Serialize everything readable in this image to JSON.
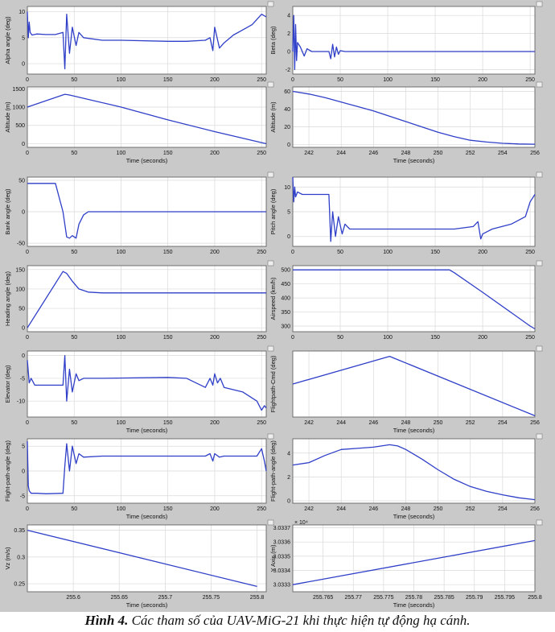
{
  "figure_caption": {
    "label": "Hình 4.",
    "text": "Các tham số của UAV-MiG-21 khi thực hiện tự động hạ cánh."
  },
  "colors": {
    "line": "#2f3fc8",
    "grid": "#d9d9d9",
    "frame": "#555555",
    "panel_bg": "#c9c9c9"
  },
  "chart_data": [
    {
      "type": "line",
      "id": "alpha",
      "xlabel": "",
      "ylabel": "Alpha angle (deg)",
      "xlim": [
        0,
        255
      ],
      "ylim": [
        -2,
        11
      ],
      "xticks": [
        0,
        50,
        100,
        150,
        200,
        250
      ],
      "yticks": [
        0,
        5,
        10
      ],
      "x": [
        0,
        1,
        2,
        3,
        5,
        10,
        20,
        30,
        38,
        40,
        42,
        45,
        48,
        52,
        55,
        60,
        80,
        100,
        150,
        170,
        190,
        195,
        198,
        200,
        205,
        210,
        220,
        230,
        240,
        250,
        255
      ],
      "y": [
        10,
        5,
        8,
        6,
        5.5,
        5.7,
        5.6,
        5.6,
        6,
        -1,
        9.5,
        2,
        7,
        3.5,
        6,
        5,
        4.5,
        4.5,
        4.3,
        4.3,
        4.5,
        5,
        2.5,
        7,
        3,
        4,
        5.5,
        6.5,
        7.5,
        9.5,
        9
      ]
    },
    {
      "type": "line",
      "id": "beta",
      "xlabel": "",
      "ylabel": "Beta (deg)",
      "xlim": [
        0,
        255
      ],
      "ylim": [
        -2.5,
        5
      ],
      "xticks": [
        0,
        50,
        100,
        150,
        200,
        250
      ],
      "yticks": [
        -2,
        0,
        2,
        4
      ],
      "x": [
        0,
        1,
        2,
        3,
        4,
        5,
        8,
        12,
        15,
        20,
        30,
        38,
        40,
        42,
        44,
        46,
        48,
        50,
        55,
        255
      ],
      "y": [
        0,
        4,
        -2,
        3,
        -1,
        1,
        0.5,
        -0.5,
        0.3,
        0,
        0,
        0,
        -0.8,
        0.8,
        -0.6,
        0.5,
        -0.3,
        0.1,
        0,
        0
      ]
    },
    {
      "type": "line",
      "id": "altitude1",
      "xlabel": "Time (seconds)",
      "ylabel": "Altitude (m)",
      "xlim": [
        0,
        255
      ],
      "ylim": [
        -100,
        1550
      ],
      "xticks": [
        0,
        50,
        100,
        150,
        200,
        250
      ],
      "yticks": [
        0,
        500,
        1000,
        1500
      ],
      "x": [
        0,
        40,
        45,
        100,
        150,
        200,
        255
      ],
      "y": [
        1000,
        1350,
        1330,
        1000,
        650,
        330,
        0
      ]
    },
    {
      "type": "line",
      "id": "altitude2",
      "xlabel": "Time (seconds)",
      "ylabel": "Altitude (m)",
      "xlim": [
        241,
        256
      ],
      "ylim": [
        -3,
        65
      ],
      "xticks": [
        242,
        244,
        246,
        248,
        250,
        252,
        254,
        256
      ],
      "yticks": [
        0,
        20,
        40,
        60
      ],
      "x": [
        241,
        242,
        243,
        244,
        245,
        246,
        247,
        248,
        249,
        250,
        251,
        252,
        253,
        254,
        255,
        256
      ],
      "y": [
        60,
        57,
        53,
        48,
        43,
        38,
        32,
        26,
        20,
        14,
        9,
        5,
        3,
        1.5,
        0.8,
        0.5
      ]
    },
    {
      "type": "line",
      "id": "bank",
      "xlabel": "",
      "ylabel": "Bank angle (deg)",
      "xlim": [
        0,
        255
      ],
      "ylim": [
        -55,
        55
      ],
      "xticks": [
        0,
        50,
        100,
        150,
        200,
        250
      ],
      "yticks": [
        -50,
        0,
        50
      ],
      "x": [
        0,
        5,
        30,
        38,
        42,
        45,
        48,
        52,
        55,
        60,
        65,
        70,
        80,
        255
      ],
      "y": [
        45,
        45,
        45,
        0,
        -40,
        -42,
        -38,
        -42,
        -20,
        -5,
        0,
        0,
        0,
        0
      ]
    },
    {
      "type": "line",
      "id": "pitch",
      "xlabel": "",
      "ylabel": "Pitch angle (deg)",
      "xlim": [
        0,
        255
      ],
      "ylim": [
        -2,
        12
      ],
      "xticks": [
        0,
        50,
        100,
        150,
        200,
        250
      ],
      "yticks": [
        0,
        5,
        10
      ],
      "x": [
        0,
        1,
        2,
        3,
        5,
        10,
        38,
        40,
        42,
        45,
        48,
        52,
        55,
        60,
        80,
        100,
        150,
        170,
        190,
        195,
        198,
        200,
        205,
        210,
        230,
        245,
        250,
        255
      ],
      "y": [
        12,
        7,
        10,
        8,
        9,
        8.5,
        8.5,
        -1,
        5,
        0,
        4,
        0.5,
        2.5,
        1.5,
        1.5,
        1.5,
        1.5,
        1.5,
        2,
        3,
        -0.5,
        0.5,
        1,
        1.5,
        2.5,
        4,
        7,
        8.5
      ]
    },
    {
      "type": "line",
      "id": "heading",
      "xlabel": "",
      "ylabel": "Heading angle (deg)",
      "xlim": [
        0,
        255
      ],
      "ylim": [
        -10,
        160
      ],
      "xticks": [
        0,
        50,
        100,
        150,
        200,
        250
      ],
      "yticks": [
        0,
        50,
        100,
        150
      ],
      "x": [
        0,
        38,
        42,
        48,
        55,
        65,
        80,
        255
      ],
      "y": [
        0,
        145,
        140,
        120,
        100,
        92,
        90,
        90
      ]
    },
    {
      "type": "line",
      "id": "airspeed",
      "xlabel": "",
      "ylabel": "Airspeed (km/h)",
      "xlim": [
        0,
        255
      ],
      "ylim": [
        280,
        515
      ],
      "xticks": [
        0,
        50,
        100,
        150,
        200,
        250
      ],
      "yticks": [
        300,
        350,
        400,
        450,
        500
      ],
      "x": [
        0,
        165,
        170,
        200,
        250,
        255
      ],
      "y": [
        500,
        500,
        490,
        420,
        300,
        290
      ]
    },
    {
      "type": "line",
      "id": "elevator",
      "xlabel": "Time (seconds)",
      "ylabel": "Elevator (deg)",
      "xlim": [
        0,
        255
      ],
      "ylim": [
        -13.5,
        1
      ],
      "xticks": [
        0,
        50,
        100,
        150,
        200,
        250
      ],
      "yticks": [
        -10,
        -5,
        0
      ],
      "x": [
        0,
        2,
        4,
        8,
        20,
        38,
        40,
        42,
        45,
        48,
        52,
        55,
        60,
        80,
        150,
        170,
        190,
        195,
        198,
        200,
        203,
        206,
        210,
        230,
        245,
        250,
        253,
        255
      ],
      "y": [
        -1,
        -6,
        -5,
        -6.5,
        -6.5,
        -6.5,
        0,
        -10,
        -3,
        -8,
        -4,
        -5.5,
        -5,
        -5,
        -4.8,
        -5,
        -7,
        -5,
        -6.5,
        -4,
        -6,
        -5,
        -7,
        -8,
        -10,
        -12,
        -11,
        -11.5
      ]
    },
    {
      "type": "line",
      "id": "fpacmd",
      "xlabel": "Time (seconds)",
      "ylabel": "Flightpath-Cmd (deg)",
      "xlim": [
        241,
        256
      ],
      "ylim": [
        0,
        5
      ],
      "xticks": [
        242,
        244,
        246,
        248,
        250,
        252,
        254,
        256
      ],
      "yticks": [],
      "x": [
        241,
        247,
        256
      ],
      "y": [
        2.5,
        4.6,
        0.1
      ]
    },
    {
      "type": "line",
      "id": "fpa1",
      "xlabel": "Time (seconds)",
      "ylabel": "Flight-path-angle (deg)",
      "xlim": [
        0,
        255
      ],
      "ylim": [
        -6.5,
        6.5
      ],
      "xticks": [
        0,
        50,
        100,
        150,
        200,
        250
      ],
      "yticks": [
        -5,
        0,
        5
      ],
      "x": [
        0,
        1,
        2,
        4,
        10,
        20,
        38,
        40,
        42,
        45,
        48,
        52,
        55,
        60,
        80,
        190,
        195,
        198,
        200,
        205,
        210,
        240,
        245,
        250,
        253,
        255
      ],
      "y": [
        6,
        -3,
        -4,
        -4.5,
        -4.5,
        -4.6,
        -4.5,
        1,
        5.5,
        0,
        5,
        1.5,
        3.5,
        2.8,
        3,
        3,
        3.5,
        2,
        3.5,
        2.8,
        3,
        3,
        3,
        4.5,
        2,
        0
      ]
    },
    {
      "type": "line",
      "id": "fpa2",
      "xlabel": "Time (seconds)",
      "ylabel": "Flight-path-angle (deg)",
      "xlim": [
        241,
        256
      ],
      "ylim": [
        -0.2,
        5.2
      ],
      "xticks": [
        242,
        244,
        246,
        248,
        250,
        252,
        254,
        256
      ],
      "yticks": [
        0,
        2,
        4
      ],
      "x": [
        241,
        242,
        243,
        244,
        245,
        246,
        247,
        247.5,
        248,
        249,
        250,
        251,
        252,
        253,
        254,
        255,
        256
      ],
      "y": [
        3,
        3.2,
        3.8,
        4.3,
        4.4,
        4.5,
        4.7,
        4.6,
        4.3,
        3.5,
        2.6,
        1.8,
        1.2,
        0.8,
        0.5,
        0.25,
        0.1
      ]
    },
    {
      "type": "line",
      "id": "vz",
      "xlabel": "Time (seconds)",
      "ylabel": "Vz (m/s)",
      "xlim": [
        255.55,
        255.81
      ],
      "ylim": [
        0.235,
        0.36
      ],
      "xticks": [
        255.6,
        255.65,
        255.7,
        255.75,
        255.8
      ],
      "yticks": [
        0.25,
        0.3,
        0.35
      ],
      "x": [
        255.55,
        255.8
      ],
      "y": [
        0.35,
        0.245
      ]
    },
    {
      "type": "line",
      "id": "yaxis",
      "xlabel": "Time (seconds)",
      "ylabel": "Y Axis (m)",
      "xlim": [
        255.76,
        255.8
      ],
      "ylim": [
        3.03325,
        3.03372
      ],
      "xticks": [
        255.765,
        255.77,
        255.775,
        255.78,
        255.785,
        255.79,
        255.795,
        255.8
      ],
      "yticks": [
        3.0333,
        3.0334,
        3.0335,
        3.0336,
        3.0337
      ],
      "y_multiplier": "× 10⁴",
      "x": [
        255.76,
        255.8
      ],
      "y": [
        3.0333,
        3.03361
      ]
    }
  ]
}
